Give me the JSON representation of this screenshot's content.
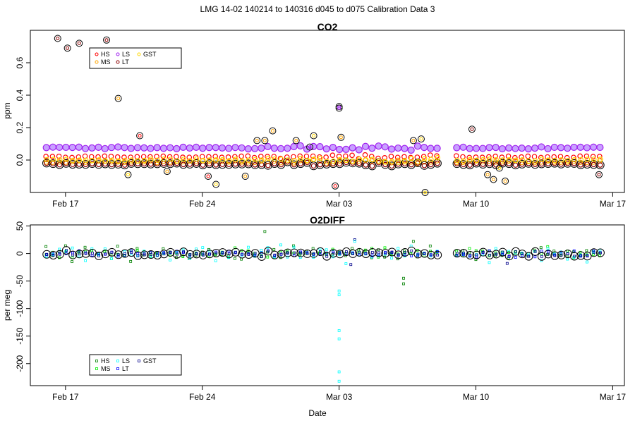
{
  "figure_title": "LMG   14-02    140214 to 140316    d045 to d075   Calibration Data 3",
  "chart_data": [
    {
      "type": "scatter",
      "title": "CO2",
      "xlabel": "",
      "ylabel": "ppm",
      "x_unit": "day of March 2014 relative (0 = Mar 03)",
      "xlim": [
        -15.8,
        14.6
      ],
      "ylim": [
        -0.2,
        0.8
      ],
      "x_ticks": [
        -14,
        -7,
        0,
        7,
        14
      ],
      "x_tick_labels": [
        "Feb 17",
        "Feb 24",
        "Mar 03",
        "Mar 10",
        "Mar 17"
      ],
      "y_ticks": [
        0.0,
        0.2,
        0.4,
        0.6
      ],
      "y_tick_labels": [
        "0.0",
        "0.2",
        "0.4",
        "0.6"
      ],
      "legend": {
        "position": "top-left",
        "entries": [
          {
            "name": "HS",
            "color": "#ff0000"
          },
          {
            "name": "MS",
            "color": "#ffa500"
          },
          {
            "name": "LS",
            "color": "#a020f0"
          },
          {
            "name": "LT",
            "color": "#8b0000"
          },
          {
            "name": "GST",
            "color": "#ffd700"
          }
        ]
      },
      "series": [
        {
          "name": "HS",
          "color": "#ff0000",
          "base": 0.02
        },
        {
          "name": "MS",
          "color": "#ffa500",
          "base": -0.01
        },
        {
          "name": "LS",
          "color": "#a020f0",
          "base": 0.075
        },
        {
          "name": "LT",
          "color": "#8b0000",
          "base": -0.025
        },
        {
          "name": "GST",
          "color": "#ffd700",
          "base": 0.0
        }
      ],
      "period_days": 0.3333,
      "gap_days": [
        5.0,
        5.7
      ],
      "outliers": [
        {
          "x": -14.4,
          "y": 0.75,
          "series": "LT"
        },
        {
          "x": -13.9,
          "y": 0.69,
          "series": "LT"
        },
        {
          "x": -13.3,
          "y": 0.72,
          "series": "LT"
        },
        {
          "x": -11.9,
          "y": 0.74,
          "series": "LT"
        },
        {
          "x": -11.3,
          "y": 0.38,
          "series": "MS"
        },
        {
          "x": -10.8,
          "y": -0.09,
          "series": "GST"
        },
        {
          "x": -10.2,
          "y": 0.15,
          "series": "HS"
        },
        {
          "x": -8.8,
          "y": -0.07,
          "series": "MS"
        },
        {
          "x": -6.7,
          "y": -0.1,
          "series": "HS"
        },
        {
          "x": -6.3,
          "y": -0.15,
          "series": "GST"
        },
        {
          "x": -4.8,
          "y": -0.1,
          "series": "MS"
        },
        {
          "x": -4.2,
          "y": 0.12,
          "series": "MS"
        },
        {
          "x": -3.8,
          "y": 0.12,
          "series": "MS"
        },
        {
          "x": -3.4,
          "y": 0.18,
          "series": "MS"
        },
        {
          "x": -2.2,
          "y": 0.12,
          "series": "MS"
        },
        {
          "x": -1.3,
          "y": 0.15,
          "series": "GST"
        },
        {
          "x": -0.2,
          "y": -0.16,
          "series": "HS"
        },
        {
          "x": -1.5,
          "y": 0.08,
          "series": "LS"
        },
        {
          "x": 0.0,
          "y": 0.33,
          "series": "LS"
        },
        {
          "x": 0.0,
          "y": 0.32,
          "series": "LS"
        },
        {
          "x": 0.1,
          "y": 0.14,
          "series": "MS"
        },
        {
          "x": 3.8,
          "y": 0.12,
          "series": "MS"
        },
        {
          "x": 4.2,
          "y": 0.13,
          "series": "GST"
        },
        {
          "x": 4.4,
          "y": -0.2,
          "series": "GST"
        },
        {
          "x": 6.8,
          "y": 0.19,
          "series": "LT"
        },
        {
          "x": 7.6,
          "y": -0.09,
          "series": "MS"
        },
        {
          "x": 7.9,
          "y": -0.12,
          "series": "MS"
        },
        {
          "x": 8.5,
          "y": -0.13,
          "series": "MS"
        },
        {
          "x": 8.2,
          "y": -0.05,
          "series": "GST"
        },
        {
          "x": 13.3,
          "y": -0.09,
          "series": "LT"
        }
      ]
    },
    {
      "type": "scatter",
      "title": "O2DIFF",
      "xlabel": "Date",
      "ylabel": "per meg",
      "x_unit": "day of March 2014 relative (0 = Mar 03)",
      "xlim": [
        -15.8,
        14.6
      ],
      "ylim": [
        -240,
        52
      ],
      "x_ticks": [
        -14,
        -7,
        0,
        7,
        14
      ],
      "x_tick_labels": [
        "Feb 17",
        "Feb 24",
        "Mar 03",
        "Mar 10",
        "Mar 17"
      ],
      "y_ticks": [
        -200,
        -150,
        -100,
        -50,
        0,
        50
      ],
      "y_tick_labels": [
        "-200",
        "-150",
        "-100",
        "-50",
        "0",
        "50"
      ],
      "legend": {
        "position": "bottom-left",
        "entries": [
          {
            "name": "HS",
            "color": "#008000"
          },
          {
            "name": "MS",
            "color": "#00ee00"
          },
          {
            "name": "LS",
            "color": "#00ffff"
          },
          {
            "name": "LT",
            "color": "#0000ff"
          },
          {
            "name": "GST",
            "color": "#00008b"
          }
        ]
      },
      "series": [
        {
          "name": "HS",
          "color": "#008000",
          "spread": 12
        },
        {
          "name": "MS",
          "color": "#00ee00",
          "spread": 10
        },
        {
          "name": "LS",
          "color": "#00ffff",
          "spread": 15
        },
        {
          "name": "LT",
          "color": "#0000ff",
          "spread": 6
        },
        {
          "name": "GST",
          "color": "#00008b",
          "spread": 5
        }
      ],
      "period_days": 0.3333,
      "gap_days": [
        5.0,
        5.7
      ],
      "outliers": [
        {
          "x": 0.0,
          "y": -68,
          "series": "LS"
        },
        {
          "x": 0.0,
          "y": -75,
          "series": "LS"
        },
        {
          "x": 0.0,
          "y": -140,
          "series": "LS"
        },
        {
          "x": 0.0,
          "y": -155,
          "series": "LS"
        },
        {
          "x": 0.0,
          "y": -215,
          "series": "LS"
        },
        {
          "x": 0.0,
          "y": -232,
          "series": "LS"
        },
        {
          "x": 3.3,
          "y": -45,
          "series": "HS"
        },
        {
          "x": 3.3,
          "y": -55,
          "series": "HS"
        },
        {
          "x": 0.6,
          "y": -20,
          "series": "GST"
        },
        {
          "x": -3.8,
          "y": 40,
          "series": "HS"
        },
        {
          "x": 0.8,
          "y": 25,
          "series": "GST"
        },
        {
          "x": 0.8,
          "y": 22,
          "series": "LS"
        },
        {
          "x": 3.8,
          "y": 22,
          "series": "HS"
        },
        {
          "x": 8.6,
          "y": -18,
          "series": "GST"
        }
      ]
    }
  ]
}
